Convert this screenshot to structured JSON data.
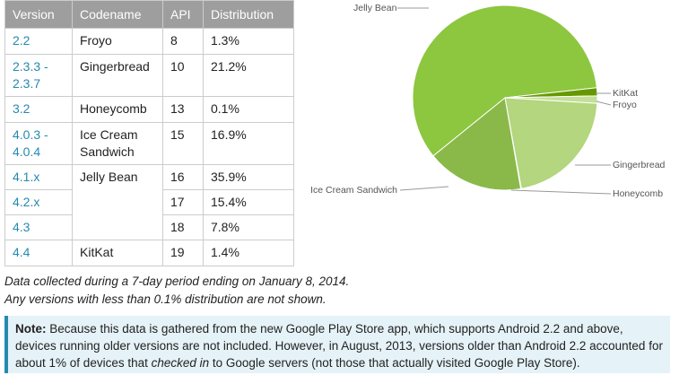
{
  "table": {
    "headers": [
      "Version",
      "Codename",
      "API",
      "Distribution"
    ],
    "rows": [
      [
        "2.2",
        "Froyo",
        "8",
        "1.3%"
      ],
      [
        "2.3.3 - 2.3.7",
        "Gingerbread",
        "10",
        "21.2%"
      ],
      [
        "3.2",
        "Honeycomb",
        "13",
        "0.1%"
      ],
      [
        "4.0.3 - 4.0.4",
        "Ice Cream Sandwich",
        "15",
        "16.9%"
      ],
      [
        "4.1.x",
        "Jelly Bean",
        "16",
        "35.9%"
      ],
      [
        "4.2.x",
        null,
        "17",
        "15.4%"
      ],
      [
        "4.3",
        null,
        "18",
        "7.8%"
      ],
      [
        "4.4",
        "KitKat",
        "19",
        "1.4%"
      ]
    ]
  },
  "chart_data": {
    "type": "pie",
    "categories": [
      "Jelly Bean",
      "KitKat",
      "Froyo",
      "Gingerbread",
      "Honeycomb",
      "Ice Cream Sandwich"
    ],
    "values": [
      59.1,
      1.4,
      1.3,
      21.2,
      0.1,
      16.9
    ],
    "colors": [
      "#8dc63f",
      "#669900",
      "#c3df99",
      "#b3d67e",
      "#d6e9bd",
      "#8ab94a"
    ]
  },
  "notes": [
    "Data collected during a 7-day period ending on January 8, 2014.",
    "Any versions with less than 0.1% distribution are not shown."
  ],
  "note": {
    "label": "Note:",
    "text_before": " Because this data is gathered from the new Google Play Store app, which supports Android 2.2 and above, devices running older versions are not included. However, in August, 2013, versions older than Android 2.2 accounted for about 1% of devices that ",
    "emphasis": "checked in",
    "text_after": " to Google servers (not those that actually visited Google Play Store)."
  }
}
